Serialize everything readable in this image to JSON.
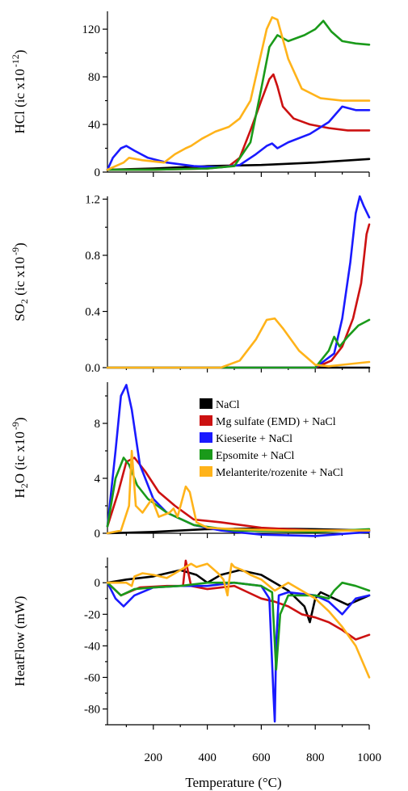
{
  "chart_data": {
    "type": "line",
    "x_axis": {
      "label": "Temperature (°C)",
      "range": [
        30,
        1000
      ],
      "ticks": [
        200,
        400,
        600,
        800,
        1000
      ],
      "tick_labels": [
        "200",
        "400",
        "600",
        "800",
        "1000"
      ]
    },
    "colors": {
      "NaCl": "#000000",
      "Mg sulfate (EMD) + NaCl": "#cc1111",
      "Kieserite + NaCl": "#1a1aff",
      "Epsomite + NaCl": "#1a9a1a",
      "Melanterite/rozenite + NaCl": "#ffb31a"
    },
    "legend": {
      "position": "right of panel 3",
      "entries": [
        "NaCl",
        "Mg sulfate (EMD) + NaCl",
        "Kieserite + NaCl",
        "Epsomite + NaCl",
        "Melanterite/rozenite + NaCl"
      ]
    },
    "panels": [
      {
        "id": "hcl",
        "ylabel": {
          "main": "HCl (ic x10",
          "exp": "-12",
          "close": ")"
        },
        "ylim": [
          0,
          135
        ],
        "ticks": [
          0,
          40,
          80,
          120
        ],
        "tick_labels": [
          "0",
          "40",
          "80",
          "120"
        ],
        "series": [
          {
            "name": "NaCl",
            "x": [
              30,
              200,
              400,
              600,
              800,
              1000
            ],
            "y": [
              2,
              3,
              5,
              6,
              8,
              11
            ]
          },
          {
            "name": "Mg sulfate (EMD) + NaCl",
            "x": [
              30,
              200,
              400,
              480,
              520,
              560,
              600,
              630,
              645,
              660,
              680,
              720,
              780,
              850,
              920,
              1000
            ],
            "y": [
              2,
              2,
              3,
              5,
              12,
              35,
              60,
              78,
              82,
              72,
              55,
              45,
              40,
              37,
              35,
              35
            ]
          },
          {
            "name": "Kieserite + NaCl",
            "x": [
              30,
              50,
              80,
              100,
              130,
              180,
              250,
              350,
              450,
              520,
              580,
              620,
              640,
              660,
              700,
              780,
              850,
              900,
              950,
              1000
            ],
            "y": [
              2,
              12,
              20,
              22,
              18,
              12,
              8,
              5,
              4,
              6,
              15,
              22,
              24,
              20,
              25,
              32,
              42,
              55,
              52,
              52
            ]
          },
          {
            "name": "Epsomite + NaCl",
            "x": [
              30,
              200,
              400,
              500,
              560,
              600,
              630,
              660,
              700,
              760,
              800,
              830,
              860,
              900,
              950,
              1000
            ],
            "y": [
              2,
              2,
              3,
              5,
              25,
              70,
              105,
              115,
              110,
              115,
              120,
              127,
              118,
              110,
              108,
              107
            ]
          },
          {
            "name": "Melanterite/rozenite + NaCl",
            "x": [
              30,
              90,
              110,
              160,
              240,
              280,
              320,
              340,
              380,
              430,
              480,
              520,
              560,
              600,
              620,
              640,
              660,
              700,
              750,
              820,
              900,
              1000
            ],
            "y": [
              2,
              8,
              12,
              10,
              8,
              15,
              20,
              22,
              28,
              34,
              38,
              45,
              60,
              100,
              120,
              130,
              128,
              95,
              70,
              62,
              60,
              60
            ]
          }
        ]
      },
      {
        "id": "so2",
        "ylabel": {
          "main": "SO",
          "sub": "2",
          "mid": " (ic x10",
          "exp": "-9",
          "close": ")"
        },
        "ylim": [
          0,
          1.22
        ],
        "ticks": [
          0.0,
          0.4,
          0.8,
          1.2
        ],
        "tick_labels": [
          "0.0",
          "0.4",
          "0.8",
          "1.2"
        ],
        "series": [
          {
            "name": "NaCl",
            "x": [
              30,
              1000
            ],
            "y": [
              0,
              0
            ]
          },
          {
            "name": "Mg sulfate (EMD) + NaCl",
            "x": [
              30,
              800,
              860,
              900,
              940,
              970,
              990,
              1000
            ],
            "y": [
              0,
              0,
              0.05,
              0.15,
              0.35,
              0.6,
              0.95,
              1.02
            ]
          },
          {
            "name": "Kieserite + NaCl",
            "x": [
              30,
              800,
              870,
              900,
              930,
              950,
              965,
              980,
              1000
            ],
            "y": [
              0,
              0,
              0.1,
              0.35,
              0.75,
              1.1,
              1.22,
              1.15,
              1.07
            ]
          },
          {
            "name": "Epsomite + NaCl",
            "x": [
              30,
              800,
              850,
              870,
              890,
              920,
              960,
              1000
            ],
            "y": [
              0,
              0,
              0.12,
              0.22,
              0.15,
              0.22,
              0.3,
              0.34
            ]
          },
          {
            "name": "Melanterite/rozenite + NaCl",
            "x": [
              30,
              450,
              520,
              580,
              620,
              650,
              680,
              740,
              800,
              850,
              900,
              1000
            ],
            "y": [
              0,
              0,
              0.05,
              0.2,
              0.34,
              0.35,
              0.28,
              0.12,
              0.02,
              0.01,
              0.02,
              0.04
            ]
          }
        ]
      },
      {
        "id": "h2o",
        "ylabel": {
          "main": "H",
          "sub": "2",
          "mid": "O (ic x10",
          "exp": "-9",
          "close": ")"
        },
        "ylim": [
          0,
          11
        ],
        "ticks": [
          0,
          4,
          8
        ],
        "tick_labels": [
          "0",
          "4",
          "8"
        ],
        "series": [
          {
            "name": "NaCl",
            "x": [
              30,
              200,
              400,
              600,
              800,
              1000
            ],
            "y": [
              0,
              0.1,
              0.3,
              0.35,
              0.3,
              0.2
            ]
          },
          {
            "name": "Mg sulfate (EMD) + NaCl",
            "x": [
              30,
              70,
              100,
              130,
              170,
              220,
              280,
              350,
              450,
              600,
              800,
              1000
            ],
            "y": [
              0.5,
              3,
              5.2,
              5.5,
              4.5,
              3,
              2,
              1,
              0.8,
              0.4,
              0.2,
              0.2
            ]
          },
          {
            "name": "Kieserite + NaCl",
            "x": [
              30,
              60,
              80,
              100,
              120,
              150,
              200,
              250,
              350,
              450,
              600,
              800,
              1000
            ],
            "y": [
              0.5,
              6,
              10,
              10.8,
              9,
              5,
              2.5,
              1.5,
              0.6,
              0.2,
              -0.1,
              -0.2,
              0.1
            ]
          },
          {
            "name": "Epsomite + NaCl",
            "x": [
              30,
              60,
              90,
              110,
              140,
              180,
              250,
              350,
              500,
              800,
              1000
            ],
            "y": [
              0.5,
              4,
              5.5,
              5,
              3.5,
              2.5,
              1.5,
              0.6,
              0.2,
              0.1,
              0.3
            ]
          },
          {
            "name": "Melanterite/rozenite + NaCl",
            "x": [
              30,
              80,
              110,
              120,
              135,
              160,
              195,
              220,
              260,
              275,
              290,
              320,
              335,
              360,
              400,
              500,
              700,
              1000
            ],
            "y": [
              0,
              0.2,
              2,
              6,
              2,
              1.5,
              2.5,
              1.2,
              1.5,
              1.8,
              1.2,
              3.4,
              3,
              0.8,
              0.4,
              0.3,
              0.2,
              0.2
            ]
          }
        ]
      },
      {
        "id": "heatflow",
        "ylabel": {
          "main": "HeatFlow (mW)"
        },
        "ylim": [
          -90,
          16
        ],
        "ticks": [
          -80,
          -60,
          -40,
          -20,
          0
        ],
        "tick_labels": [
          "-80",
          "-60",
          "-40",
          "-20",
          "0"
        ],
        "series": [
          {
            "name": "NaCl",
            "x": [
              30,
              100,
              200,
              300,
              360,
              400,
              450,
              520,
              600,
              650,
              700,
              760,
              780,
              800,
              820,
              870,
              920,
              1000
            ],
            "y": [
              0,
              2,
              4,
              8,
              5,
              0,
              5,
              8,
              5,
              0,
              -5,
              -15,
              -25,
              -10,
              -6,
              -10,
              -14,
              -8
            ]
          },
          {
            "name": "Mg sulfate (EMD) + NaCl",
            "x": [
              30,
              80,
              150,
              250,
              310,
              320,
              340,
              400,
              500,
              550,
              600,
              650,
              700,
              750,
              800,
              850,
              900,
              950,
              1000
            ],
            "y": [
              0,
              -8,
              -3,
              -2,
              -2,
              14,
              -2,
              -4,
              -2,
              -6,
              -10,
              -12,
              -15,
              -20,
              -22,
              -25,
              -30,
              -36,
              -33
            ]
          },
          {
            "name": "Kieserite + NaCl",
            "x": [
              30,
              60,
              90,
              130,
              200,
              300,
              400,
              500,
              600,
              630,
              645,
              650,
              655,
              665,
              700,
              800,
              850,
              900,
              950,
              1000
            ],
            "y": [
              0,
              -10,
              -15,
              -8,
              -3,
              -2,
              -2,
              0,
              -2,
              -10,
              -70,
              -88,
              -40,
              -8,
              -6,
              -8,
              -12,
              -20,
              -10,
              -8
            ]
          },
          {
            "name": "Epsomite + NaCl",
            "x": [
              30,
              80,
              130,
              200,
              300,
              400,
              500,
              600,
              640,
              655,
              670,
              700,
              800,
              850,
              870,
              900,
              950,
              1000
            ],
            "y": [
              0,
              -8,
              -4,
              -3,
              -2,
              0,
              0,
              -2,
              -6,
              -55,
              -20,
              -8,
              -8,
              -10,
              -5,
              0,
              -2,
              -5
            ]
          },
          {
            "name": "Melanterite/rozenite + NaCl",
            "x": [
              30,
              100,
              120,
              130,
              160,
              200,
              250,
              300,
              340,
              360,
              400,
              440,
              460,
              475,
              480,
              490,
              500,
              530,
              560,
              600,
              650,
              700,
              800,
              850,
              900,
              950,
              1000
            ],
            "y": [
              0,
              0,
              -2,
              4,
              6,
              5,
              3,
              8,
              12,
              10,
              12,
              6,
              2,
              -8,
              0,
              12,
              10,
              8,
              5,
              2,
              -5,
              0,
              -10,
              -18,
              -28,
              -40,
              -60
            ]
          }
        ]
      }
    ]
  }
}
